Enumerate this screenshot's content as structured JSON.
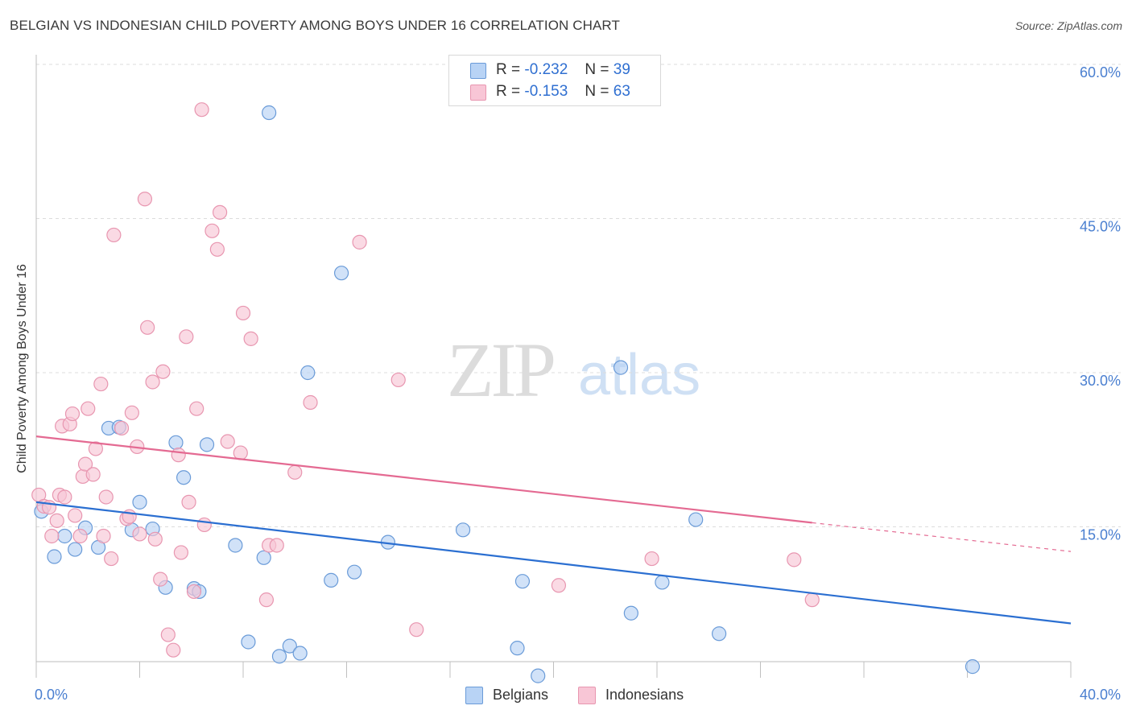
{
  "title": "BELGIAN VS INDONESIAN CHILD POVERTY AMONG BOYS UNDER 16 CORRELATION CHART",
  "source": "Source: ZipAtlas.com",
  "watermark": {
    "zip": "ZIP",
    "atlas": "atlas"
  },
  "legend_top": {
    "belgians": {
      "r_label": "R =",
      "r_value": "-0.232",
      "n_label": "N =",
      "n_value": "39"
    },
    "indonesians": {
      "r_label": "R =",
      "r_value": "-0.153",
      "n_label": "N =",
      "n_value": "63"
    }
  },
  "legend_bottom": {
    "belgians": "Belgians",
    "indonesians": "Indonesians"
  },
  "colors": {
    "blue_fill": "#b8d3f5",
    "blue_stroke": "#6a9bd8",
    "blue_line": "#2b6fd1",
    "pink_fill": "#f8c6d6",
    "pink_stroke": "#e896b0",
    "pink_line": "#e46a92",
    "axis_text": "#4a7fd0",
    "grid": "#dcdcdc"
  },
  "chart_data": {
    "type": "scatter",
    "title": "BELGIAN VS INDONESIAN CHILD POVERTY AMONG BOYS UNDER 16 CORRELATION CHART",
    "xlabel": "",
    "ylabel": "Child Poverty Among Boys Under 16",
    "xlim": [
      0,
      40
    ],
    "ylim": [
      0,
      60
    ],
    "x_tick_labels": [
      "0.0%",
      "40.0%"
    ],
    "y_tick_labels": [
      "15.0%",
      "30.0%",
      "45.0%",
      "60.0%"
    ],
    "y_ticks": [
      15,
      30,
      45,
      60
    ],
    "x_minor_ticks": [
      0,
      4,
      8,
      12,
      16,
      20,
      24,
      28,
      32,
      36,
      40
    ],
    "grid": true,
    "legend_position": "top-center",
    "series": [
      {
        "name": "Belgians",
        "color": "#b8d3f5",
        "r": -0.232,
        "n": 39,
        "trend": {
          "x": [
            0,
            40
          ],
          "y": [
            17.4,
            5.6
          ],
          "dashed_from": null
        },
        "points": [
          [
            0.2,
            16.5
          ],
          [
            0.7,
            12.1
          ],
          [
            1.1,
            14.1
          ],
          [
            1.5,
            12.8
          ],
          [
            1.9,
            14.9
          ],
          [
            2.4,
            13.0
          ],
          [
            2.8,
            24.6
          ],
          [
            3.2,
            24.7
          ],
          [
            3.7,
            14.7
          ],
          [
            4.0,
            17.4
          ],
          [
            4.5,
            14.8
          ],
          [
            5.0,
            9.1
          ],
          [
            5.4,
            23.2
          ],
          [
            5.7,
            19.8
          ],
          [
            6.1,
            9.0
          ],
          [
            6.3,
            8.7
          ],
          [
            6.6,
            23.0
          ],
          [
            7.7,
            13.2
          ],
          [
            8.2,
            3.8
          ],
          [
            8.8,
            12.0
          ],
          [
            9.0,
            55.3
          ],
          [
            9.4,
            2.4
          ],
          [
            9.8,
            3.4
          ],
          [
            10.2,
            2.7
          ],
          [
            10.5,
            30.0
          ],
          [
            11.4,
            9.8
          ],
          [
            11.8,
            39.7
          ],
          [
            12.3,
            10.6
          ],
          [
            13.6,
            13.5
          ],
          [
            16.5,
            14.7
          ],
          [
            18.6,
            3.2
          ],
          [
            18.8,
            9.7
          ],
          [
            19.4,
            0.5
          ],
          [
            22.6,
            30.5
          ],
          [
            23.0,
            6.6
          ],
          [
            24.2,
            9.6
          ],
          [
            25.5,
            15.7
          ],
          [
            26.4,
            4.6
          ],
          [
            36.2,
            1.4
          ]
        ]
      },
      {
        "name": "Indonesians",
        "color": "#f8c6d6",
        "r": -0.153,
        "n": 63,
        "trend": {
          "x": [
            0,
            40
          ],
          "y": [
            23.8,
            12.6
          ],
          "dashed_from": 30
        },
        "points": [
          [
            0.1,
            18.1
          ],
          [
            0.3,
            17.0
          ],
          [
            0.5,
            16.9
          ],
          [
            0.6,
            14.1
          ],
          [
            0.8,
            15.6
          ],
          [
            0.9,
            18.1
          ],
          [
            1.0,
            24.8
          ],
          [
            1.1,
            17.9
          ],
          [
            1.3,
            25.0
          ],
          [
            1.4,
            26.0
          ],
          [
            1.5,
            16.1
          ],
          [
            1.7,
            14.1
          ],
          [
            1.8,
            19.9
          ],
          [
            1.9,
            21.1
          ],
          [
            2.0,
            26.5
          ],
          [
            2.2,
            20.1
          ],
          [
            2.3,
            22.6
          ],
          [
            2.5,
            28.9
          ],
          [
            2.6,
            14.1
          ],
          [
            2.7,
            17.9
          ],
          [
            2.9,
            11.9
          ],
          [
            3.0,
            43.4
          ],
          [
            3.3,
            24.6
          ],
          [
            3.5,
            15.8
          ],
          [
            3.6,
            16.0
          ],
          [
            3.7,
            26.1
          ],
          [
            3.9,
            22.8
          ],
          [
            4.0,
            14.3
          ],
          [
            4.2,
            46.9
          ],
          [
            4.3,
            34.4
          ],
          [
            4.5,
            29.1
          ],
          [
            4.6,
            13.8
          ],
          [
            4.8,
            9.9
          ],
          [
            4.9,
            30.1
          ],
          [
            5.1,
            4.5
          ],
          [
            5.3,
            3.0
          ],
          [
            5.5,
            22.0
          ],
          [
            5.6,
            12.5
          ],
          [
            5.8,
            33.5
          ],
          [
            5.9,
            17.4
          ],
          [
            6.1,
            8.7
          ],
          [
            6.2,
            26.5
          ],
          [
            6.4,
            55.6
          ],
          [
            6.5,
            15.2
          ],
          [
            6.8,
            43.8
          ],
          [
            7.0,
            42.0
          ],
          [
            7.1,
            45.6
          ],
          [
            7.4,
            23.3
          ],
          [
            7.9,
            22.2
          ],
          [
            8.0,
            35.8
          ],
          [
            8.3,
            33.3
          ],
          [
            8.9,
            7.9
          ],
          [
            9.0,
            13.2
          ],
          [
            9.3,
            13.2
          ],
          [
            10.0,
            20.3
          ],
          [
            10.6,
            27.1
          ],
          [
            12.5,
            42.7
          ],
          [
            14.0,
            29.3
          ],
          [
            14.7,
            5.0
          ],
          [
            20.2,
            9.3
          ],
          [
            23.8,
            11.9
          ],
          [
            29.3,
            11.8
          ],
          [
            30.0,
            7.9
          ]
        ]
      }
    ]
  }
}
